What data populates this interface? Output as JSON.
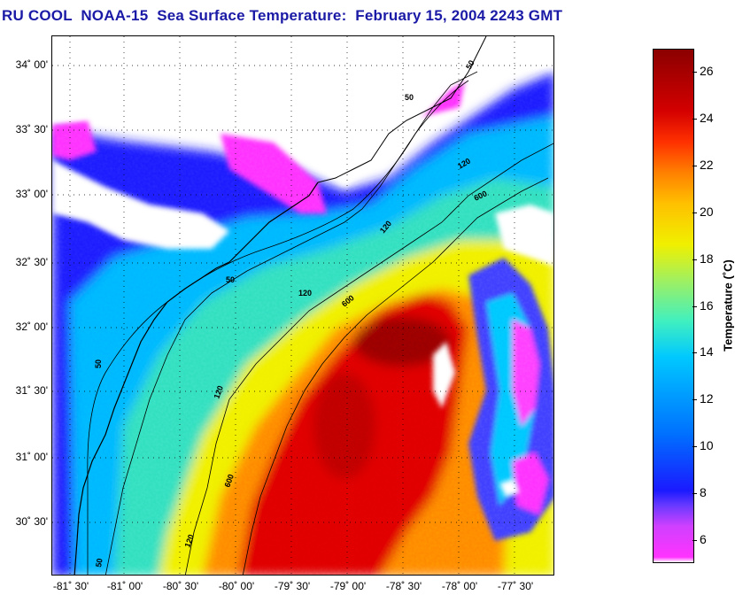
{
  "title": "RU COOL  NOAA-15  Sea Surface Temperature:  February 15, 2004 2243 GMT",
  "map": {
    "lat_ticks": [
      "34˚ 00'",
      "33˚ 30'",
      "33˚ 00'",
      "32˚ 30'",
      "32˚ 00'",
      "31˚ 30'",
      "31˚ 00'",
      "30˚ 30'"
    ],
    "lon_ticks": [
      "-81˚ 30'",
      "-81˚ 00'",
      "-80˚ 30'",
      "-80˚ 00'",
      "-79˚ 30'",
      "-79˚ 00'",
      "-78˚ 30'",
      "-78˚ 00'",
      "-77˚ 30'"
    ],
    "contour_labels": [
      "50",
      "50",
      "50",
      "50",
      "50",
      "120",
      "120",
      "120",
      "120",
      "120",
      "600",
      "600",
      "600"
    ],
    "colors": {
      "cloud": "#ffffff",
      "coldest": "#ff33ff",
      "cold": "#1a1aff",
      "cool": "#00c8ff",
      "mild": "#f0f000",
      "warm": "#ff8000",
      "hot": "#d40000",
      "hottest": "#8b0000"
    }
  },
  "colorbar": {
    "label": "Temperature (˚C)",
    "range": [
      5,
      27
    ],
    "ticks": [
      "26",
      "24",
      "22",
      "20",
      "18",
      "16",
      "14",
      "12",
      "10",
      "8",
      "6"
    ],
    "tick_values": [
      26,
      24,
      22,
      20,
      18,
      16,
      14,
      12,
      10,
      8,
      6
    ]
  }
}
